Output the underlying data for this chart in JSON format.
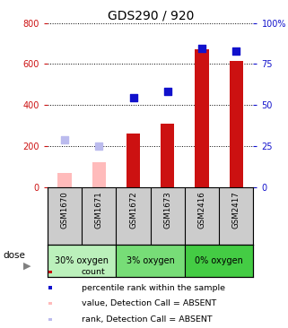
{
  "title": "GDS290 / 920",
  "samples": [
    "GSM1670",
    "GSM1671",
    "GSM1672",
    "GSM1673",
    "GSM2416",
    "GSM2417"
  ],
  "groups": [
    {
      "label": "30% oxygen",
      "color": "#bbf0bb",
      "start": 0,
      "end": 2
    },
    {
      "label": "3% oxygen",
      "color": "#77dd77",
      "start": 2,
      "end": 4
    },
    {
      "label": "0% oxygen",
      "color": "#44cc44",
      "start": 4,
      "end": 6
    }
  ],
  "count_values": [
    null,
    null,
    260,
    310,
    670,
    615
  ],
  "rank_values_left": [
    null,
    null,
    435,
    465,
    675,
    665
  ],
  "absent_count": [
    70,
    120,
    null,
    null,
    null,
    null
  ],
  "absent_rank_left": [
    230,
    200,
    null,
    null,
    null,
    null
  ],
  "ylim_left": [
    0,
    800
  ],
  "ylim_right": [
    0,
    100
  ],
  "yticks_left": [
    0,
    200,
    400,
    600,
    800
  ],
  "yticks_right": [
    0,
    25,
    50,
    75,
    100
  ],
  "ytick_labels_right": [
    "0",
    "25",
    "50",
    "75",
    "100%"
  ],
  "color_count": "#cc1111",
  "color_rank": "#1111cc",
  "color_absent_count": "#ffbbbb",
  "color_absent_rank": "#bbbbee",
  "bar_width": 0.4,
  "dot_size": 28,
  "left_tick_color": "#cc1111",
  "right_tick_color": "#1111cc",
  "grid_color": "#000000",
  "grid_linestyle": "dotted",
  "grid_linewidth": 0.7,
  "bg_color": "#ffffff",
  "plot_bg": "#ffffff",
  "sample_label_bg": "#cccccc",
  "tick_labelsize": 7,
  "title_fontsize": 10
}
